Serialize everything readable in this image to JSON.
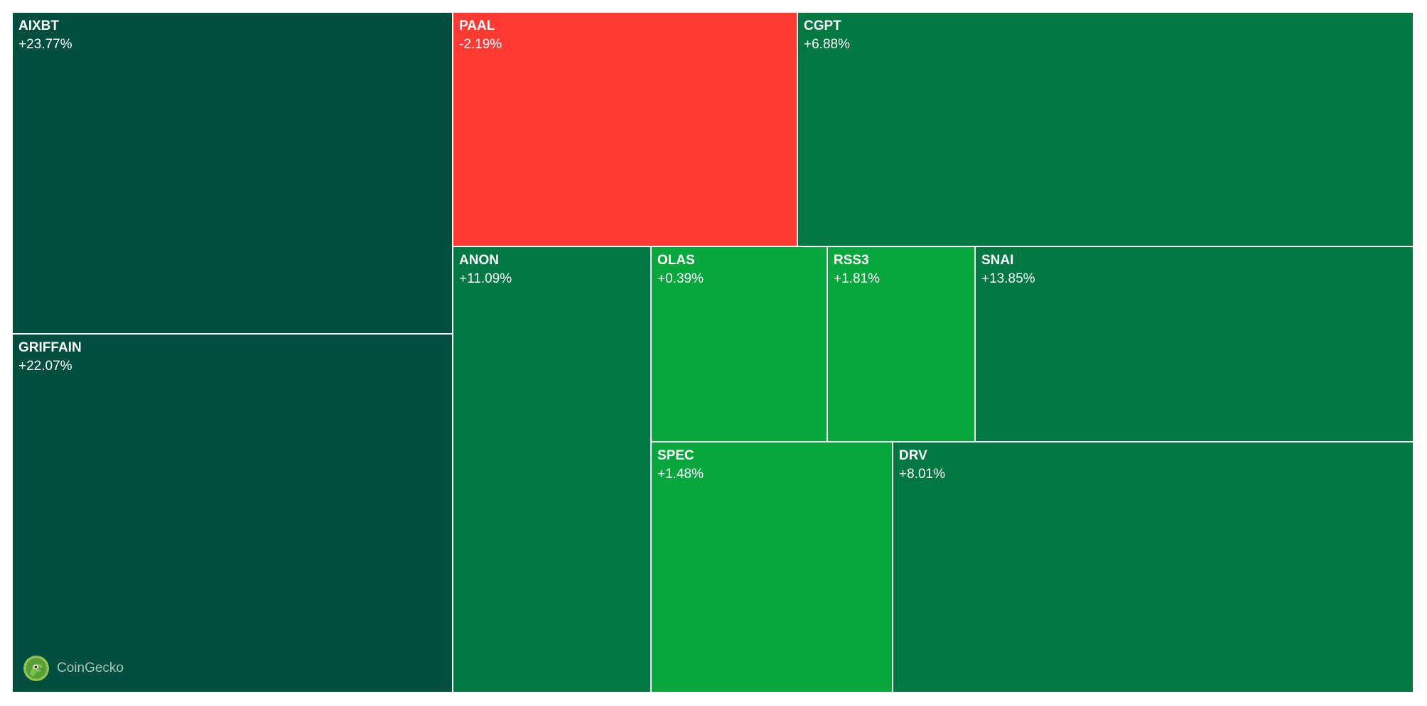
{
  "chart_data": {
    "type": "treemap",
    "tiles": [
      {
        "symbol": "AIXBT",
        "change": "+23.77%",
        "value": 23.77,
        "color": "#004f3e"
      },
      {
        "symbol": "GRIFFAIN",
        "change": "+22.07%",
        "value": 22.07,
        "color": "#004f3e"
      },
      {
        "symbol": "PAAL",
        "change": "-2.19%",
        "value": -2.19,
        "color": "#ff3a33"
      },
      {
        "symbol": "CGPT",
        "change": "+6.88%",
        "value": 6.88,
        "color": "#007842"
      },
      {
        "symbol": "ANON",
        "change": "+11.09%",
        "value": 11.09,
        "color": "#007842"
      },
      {
        "symbol": "OLAS",
        "change": "+0.39%",
        "value": 0.39,
        "color": "#06a73d"
      },
      {
        "symbol": "RSS3",
        "change": "+1.81%",
        "value": 1.81,
        "color": "#06a73d"
      },
      {
        "symbol": "SNAI",
        "change": "+13.85%",
        "value": 13.85,
        "color": "#007842"
      },
      {
        "symbol": "SPEC",
        "change": "+1.48%",
        "value": 1.48,
        "color": "#06a73d"
      },
      {
        "symbol": "DRV",
        "change": "+8.01%",
        "value": 8.01,
        "color": "#007842"
      }
    ]
  },
  "watermark": {
    "text": "CoinGecko",
    "icon": "coingecko-gecko-logo"
  }
}
